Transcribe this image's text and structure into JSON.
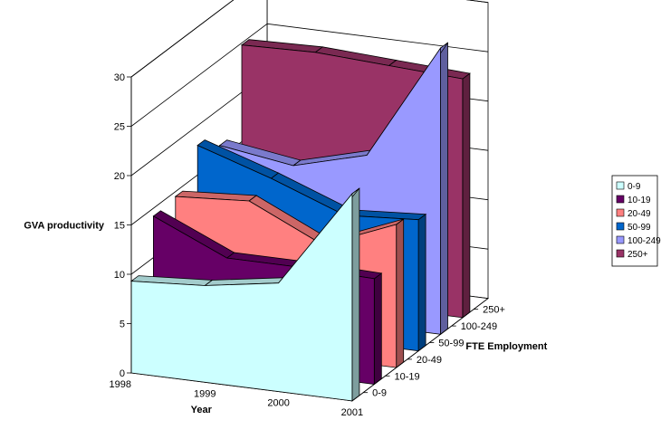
{
  "chart_data": {
    "type": "area",
    "variant": "3d-area",
    "title": "",
    "ylabel": "GVA productivity",
    "xlabel": "Year",
    "zlabel": "FTE Employment",
    "ylim": [
      0,
      30
    ],
    "yticks": [
      "0",
      "5",
      "10",
      "15",
      "20",
      "25",
      "30"
    ],
    "categories": [
      "1998",
      "1999",
      "2000",
      "2001"
    ],
    "legend_position": "right",
    "grid": "major horizontal",
    "series": [
      {
        "name": "0-9",
        "color": "#ccffff",
        "values": [
          9.3,
          9.8,
          11.0,
          21.0
        ]
      },
      {
        "name": "10-19",
        "color": "#660066",
        "values": [
          14.2,
          10.9,
          10.9,
          10.7
        ]
      },
      {
        "name": "20-49",
        "color": "#ff8080",
        "values": [
          14.5,
          15.0,
          11.5,
          14.5
        ]
      },
      {
        "name": "50-99",
        "color": "#0066cc",
        "values": [
          18.0,
          15.6,
          12.8,
          13.3
        ]
      },
      {
        "name": "100-249",
        "color": "#9999ff",
        "values": [
          16.3,
          15.2,
          17.2,
          29.0
        ]
      },
      {
        "name": "250+",
        "color": "#993366",
        "values": [
          24.8,
          25.0,
          24.6,
          24.2
        ]
      }
    ]
  }
}
